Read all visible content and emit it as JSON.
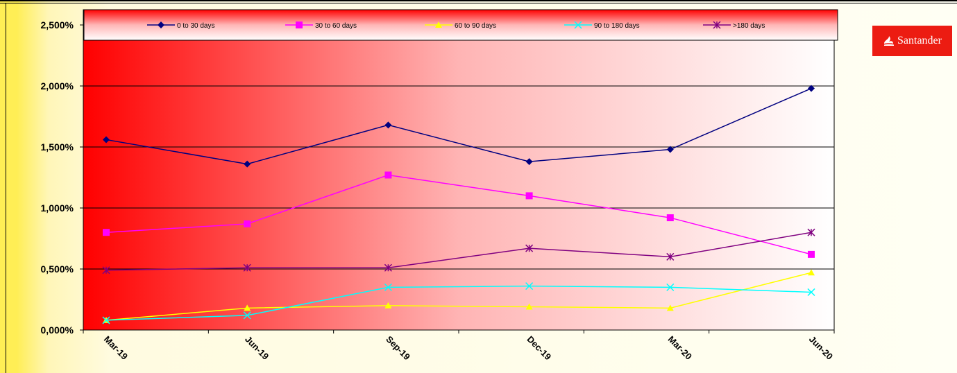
{
  "brand": {
    "name": "Santander",
    "color": "#ec1c12",
    "icon": "flame-icon"
  },
  "chart_data": {
    "type": "line",
    "title": "",
    "xlabel": "",
    "ylabel": "",
    "categories": [
      "Mar-19",
      "Jun-19",
      "Sep-19",
      "Dec-19",
      "Mar-20",
      "Jun-20"
    ],
    "ylim": [
      0,
      2.5
    ],
    "yticks": [
      0,
      0.5,
      1.0,
      1.5,
      2.0,
      2.5
    ],
    "ytick_labels": [
      "0,000%",
      "0,500%",
      "1,000%",
      "1,500%",
      "2,000%",
      "2,500%"
    ],
    "grid": true,
    "legend_position": "top",
    "plot_background": "gradient red to white (left to right)",
    "series": [
      {
        "name": "0 to  30 days",
        "color": "#000080",
        "marker": "diamond",
        "values": [
          1.56,
          1.36,
          1.68,
          1.38,
          1.48,
          1.98
        ]
      },
      {
        "name": "30 to 60 days",
        "color": "#ff00ff",
        "marker": "square",
        "values": [
          0.8,
          0.87,
          1.27,
          1.1,
          0.92,
          0.62
        ]
      },
      {
        "name": "60 to 90 days",
        "color": "#ffff00",
        "marker": "triangle",
        "values": [
          0.08,
          0.18,
          0.2,
          0.19,
          0.18,
          0.47
        ]
      },
      {
        "name": "90 to 180 days",
        "color": "#00ffff",
        "marker": "x",
        "values": [
          0.08,
          0.12,
          0.35,
          0.36,
          0.35,
          0.31
        ]
      },
      {
        "name": ">180 days",
        "color": "#800080",
        "marker": "star",
        "values": [
          0.49,
          0.51,
          0.51,
          0.67,
          0.6,
          0.8
        ]
      }
    ]
  }
}
